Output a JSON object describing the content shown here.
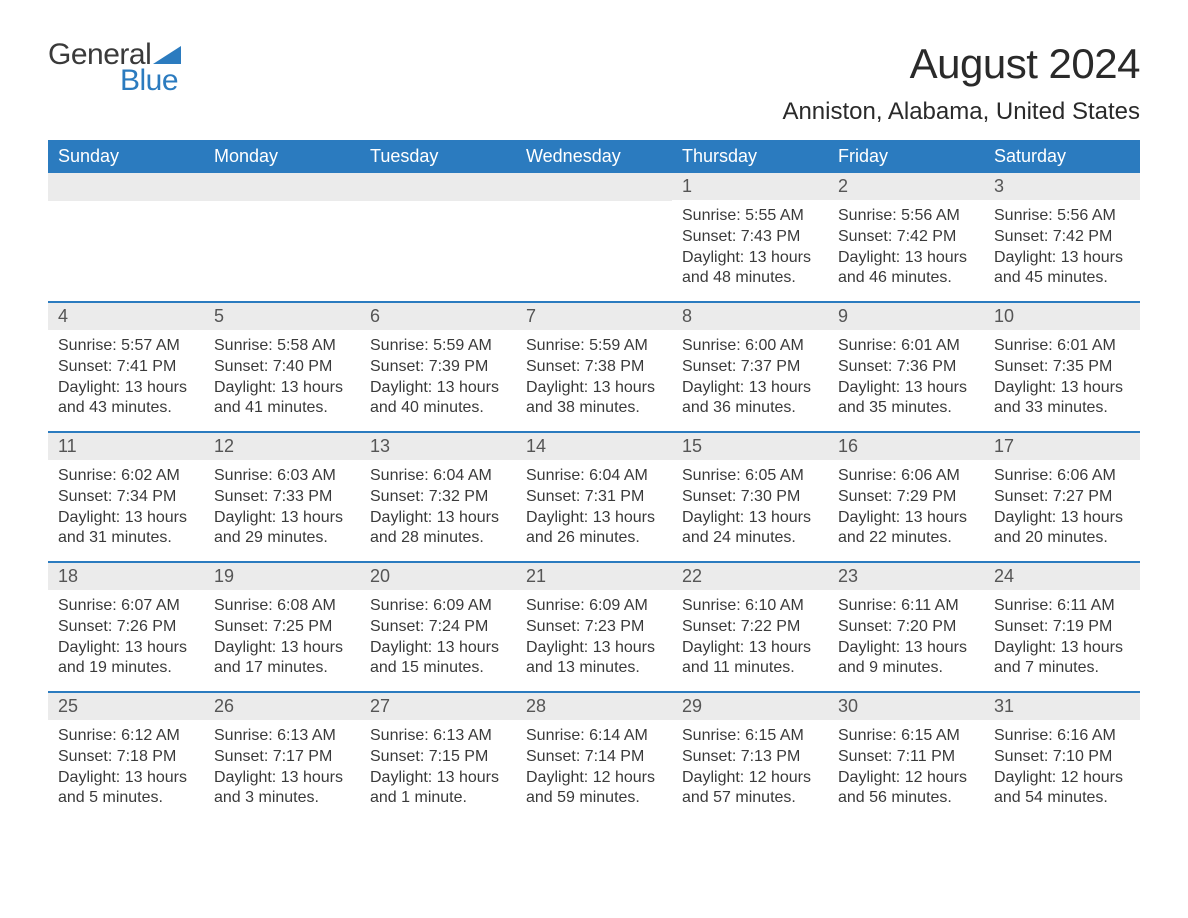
{
  "branding": {
    "logo_general": "General",
    "logo_blue": "Blue",
    "logo_flag_color": "#2b7bbf"
  },
  "header": {
    "month_title": "August 2024",
    "location": "Anniston, Alabama, United States"
  },
  "styling": {
    "header_bg": "#2b7bbf",
    "header_text_color": "#ffffff",
    "day_num_bg": "#ebebeb",
    "week_border_color": "#2b7bbf",
    "body_text_color": "#3a3a3a",
    "background": "#ffffff",
    "month_title_fontsize": 42,
    "location_fontsize": 24,
    "weekday_fontsize": 18,
    "daynum_fontsize": 18,
    "content_fontsize": 16
  },
  "weekdays": [
    "Sunday",
    "Monday",
    "Tuesday",
    "Wednesday",
    "Thursday",
    "Friday",
    "Saturday"
  ],
  "weeks": [
    [
      null,
      null,
      null,
      null,
      {
        "day": "1",
        "sunrise": "Sunrise: 5:55 AM",
        "sunset": "Sunset: 7:43 PM",
        "daylight": "Daylight: 13 hours and 48 minutes."
      },
      {
        "day": "2",
        "sunrise": "Sunrise: 5:56 AM",
        "sunset": "Sunset: 7:42 PM",
        "daylight": "Daylight: 13 hours and 46 minutes."
      },
      {
        "day": "3",
        "sunrise": "Sunrise: 5:56 AM",
        "sunset": "Sunset: 7:42 PM",
        "daylight": "Daylight: 13 hours and 45 minutes."
      }
    ],
    [
      {
        "day": "4",
        "sunrise": "Sunrise: 5:57 AM",
        "sunset": "Sunset: 7:41 PM",
        "daylight": "Daylight: 13 hours and 43 minutes."
      },
      {
        "day": "5",
        "sunrise": "Sunrise: 5:58 AM",
        "sunset": "Sunset: 7:40 PM",
        "daylight": "Daylight: 13 hours and 41 minutes."
      },
      {
        "day": "6",
        "sunrise": "Sunrise: 5:59 AM",
        "sunset": "Sunset: 7:39 PM",
        "daylight": "Daylight: 13 hours and 40 minutes."
      },
      {
        "day": "7",
        "sunrise": "Sunrise: 5:59 AM",
        "sunset": "Sunset: 7:38 PM",
        "daylight": "Daylight: 13 hours and 38 minutes."
      },
      {
        "day": "8",
        "sunrise": "Sunrise: 6:00 AM",
        "sunset": "Sunset: 7:37 PM",
        "daylight": "Daylight: 13 hours and 36 minutes."
      },
      {
        "day": "9",
        "sunrise": "Sunrise: 6:01 AM",
        "sunset": "Sunset: 7:36 PM",
        "daylight": "Daylight: 13 hours and 35 minutes."
      },
      {
        "day": "10",
        "sunrise": "Sunrise: 6:01 AM",
        "sunset": "Sunset: 7:35 PM",
        "daylight": "Daylight: 13 hours and 33 minutes."
      }
    ],
    [
      {
        "day": "11",
        "sunrise": "Sunrise: 6:02 AM",
        "sunset": "Sunset: 7:34 PM",
        "daylight": "Daylight: 13 hours and 31 minutes."
      },
      {
        "day": "12",
        "sunrise": "Sunrise: 6:03 AM",
        "sunset": "Sunset: 7:33 PM",
        "daylight": "Daylight: 13 hours and 29 minutes."
      },
      {
        "day": "13",
        "sunrise": "Sunrise: 6:04 AM",
        "sunset": "Sunset: 7:32 PM",
        "daylight": "Daylight: 13 hours and 28 minutes."
      },
      {
        "day": "14",
        "sunrise": "Sunrise: 6:04 AM",
        "sunset": "Sunset: 7:31 PM",
        "daylight": "Daylight: 13 hours and 26 minutes."
      },
      {
        "day": "15",
        "sunrise": "Sunrise: 6:05 AM",
        "sunset": "Sunset: 7:30 PM",
        "daylight": "Daylight: 13 hours and 24 minutes."
      },
      {
        "day": "16",
        "sunrise": "Sunrise: 6:06 AM",
        "sunset": "Sunset: 7:29 PM",
        "daylight": "Daylight: 13 hours and 22 minutes."
      },
      {
        "day": "17",
        "sunrise": "Sunrise: 6:06 AM",
        "sunset": "Sunset: 7:27 PM",
        "daylight": "Daylight: 13 hours and 20 minutes."
      }
    ],
    [
      {
        "day": "18",
        "sunrise": "Sunrise: 6:07 AM",
        "sunset": "Sunset: 7:26 PM",
        "daylight": "Daylight: 13 hours and 19 minutes."
      },
      {
        "day": "19",
        "sunrise": "Sunrise: 6:08 AM",
        "sunset": "Sunset: 7:25 PM",
        "daylight": "Daylight: 13 hours and 17 minutes."
      },
      {
        "day": "20",
        "sunrise": "Sunrise: 6:09 AM",
        "sunset": "Sunset: 7:24 PM",
        "daylight": "Daylight: 13 hours and 15 minutes."
      },
      {
        "day": "21",
        "sunrise": "Sunrise: 6:09 AM",
        "sunset": "Sunset: 7:23 PM",
        "daylight": "Daylight: 13 hours and 13 minutes."
      },
      {
        "day": "22",
        "sunrise": "Sunrise: 6:10 AM",
        "sunset": "Sunset: 7:22 PM",
        "daylight": "Daylight: 13 hours and 11 minutes."
      },
      {
        "day": "23",
        "sunrise": "Sunrise: 6:11 AM",
        "sunset": "Sunset: 7:20 PM",
        "daylight": "Daylight: 13 hours and 9 minutes."
      },
      {
        "day": "24",
        "sunrise": "Sunrise: 6:11 AM",
        "sunset": "Sunset: 7:19 PM",
        "daylight": "Daylight: 13 hours and 7 minutes."
      }
    ],
    [
      {
        "day": "25",
        "sunrise": "Sunrise: 6:12 AM",
        "sunset": "Sunset: 7:18 PM",
        "daylight": "Daylight: 13 hours and 5 minutes."
      },
      {
        "day": "26",
        "sunrise": "Sunrise: 6:13 AM",
        "sunset": "Sunset: 7:17 PM",
        "daylight": "Daylight: 13 hours and 3 minutes."
      },
      {
        "day": "27",
        "sunrise": "Sunrise: 6:13 AM",
        "sunset": "Sunset: 7:15 PM",
        "daylight": "Daylight: 13 hours and 1 minute."
      },
      {
        "day": "28",
        "sunrise": "Sunrise: 6:14 AM",
        "sunset": "Sunset: 7:14 PM",
        "daylight": "Daylight: 12 hours and 59 minutes."
      },
      {
        "day": "29",
        "sunrise": "Sunrise: 6:15 AM",
        "sunset": "Sunset: 7:13 PM",
        "daylight": "Daylight: 12 hours and 57 minutes."
      },
      {
        "day": "30",
        "sunrise": "Sunrise: 6:15 AM",
        "sunset": "Sunset: 7:11 PM",
        "daylight": "Daylight: 12 hours and 56 minutes."
      },
      {
        "day": "31",
        "sunrise": "Sunrise: 6:16 AM",
        "sunset": "Sunset: 7:10 PM",
        "daylight": "Daylight: 12 hours and 54 minutes."
      }
    ]
  ]
}
